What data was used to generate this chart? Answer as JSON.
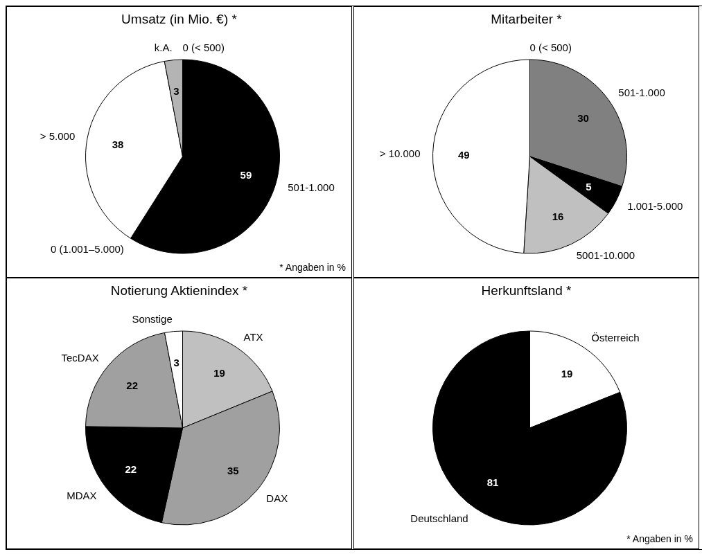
{
  "chart_data": [
    {
      "type": "pie",
      "title": "Umsatz (in Mio. €) *",
      "categories": [
        "0 (< 500)",
        "501-1.000",
        "0 (1.001–5.000)",
        "> 5.000",
        "k.A."
      ],
      "values": [
        0,
        59,
        0,
        38,
        3
      ],
      "colors": [
        "#ffffff",
        "#000000",
        "#ffffff",
        "#ffffff",
        "#b4b4b4"
      ],
      "value_labels": [
        null,
        "59",
        null,
        "38",
        "3"
      ],
      "annotations": [
        "* Angaben in %"
      ]
    },
    {
      "type": "pie",
      "title": "Mitarbeiter *",
      "categories": [
        "0 (< 500)",
        "501-1.000",
        "1.001-5.000",
        "5001-10.000",
        "> 10.000"
      ],
      "values": [
        0,
        30,
        5,
        16,
        49
      ],
      "colors": [
        "#ffffff",
        "#808080",
        "#000000",
        "#c0c0c0",
        "#ffffff"
      ],
      "value_labels": [
        null,
        "30",
        "5",
        "16",
        "49"
      ]
    },
    {
      "type": "pie",
      "title": "Notierung Aktienindex *",
      "categories": [
        "ATX",
        "DAX",
        "MDAX",
        "TecDAX",
        "Sonstige"
      ],
      "values": [
        19,
        35,
        22,
        22,
        3
      ],
      "colors": [
        "#c0c0c0",
        "#a0a0a0",
        "#000000",
        "#a0a0a0",
        "#ffffff"
      ],
      "data_labels": true
    },
    {
      "type": "pie",
      "title": "Herkunftsland *",
      "categories": [
        "Österreich",
        "Deutschland"
      ],
      "values": [
        19,
        81
      ],
      "colors": [
        "#ffffff",
        "#000000"
      ],
      "data_labels": true,
      "annotations": [
        "* Angaben in %"
      ]
    }
  ]
}
